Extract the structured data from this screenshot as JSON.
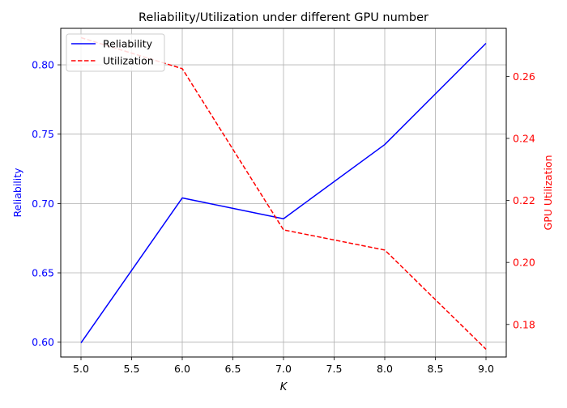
{
  "chart_data": {
    "type": "line",
    "title": "Reliability/Utilization under different GPU number",
    "xlabel": "K",
    "ylabel_left": "Reliability",
    "ylabel_right": "GPU Utilization",
    "x": [
      5,
      6,
      7,
      8,
      9
    ],
    "xlim": [
      4.8,
      9.2
    ],
    "x_ticks": [
      5.0,
      5.5,
      6.0,
      6.5,
      7.0,
      7.5,
      8.0,
      8.5,
      9.0
    ],
    "x_tick_labels": [
      "5.0",
      "5.5",
      "6.0",
      "6.5",
      "7.0",
      "7.5",
      "8.0",
      "8.5",
      "9.0"
    ],
    "ylim_left": [
      0.5893,
      0.8263
    ],
    "y_ticks_left": [
      0.6,
      0.65,
      0.7,
      0.75,
      0.8
    ],
    "y_tick_labels_left": [
      "0.60",
      "0.65",
      "0.70",
      "0.75",
      "0.80"
    ],
    "ylim_right": [
      0.1695,
      0.2755
    ],
    "y_ticks_right": [
      0.18,
      0.2,
      0.22,
      0.24,
      0.26
    ],
    "y_tick_labels_right": [
      "0.18",
      "0.20",
      "0.22",
      "0.24",
      "0.26"
    ],
    "grid": true,
    "legend_position": "top-left",
    "series": [
      {
        "name": "Reliability",
        "axis": "left",
        "color": "#0000ff",
        "style": "solid",
        "values": [
          0.5995,
          0.704,
          0.689,
          0.7425,
          0.8155
        ]
      },
      {
        "name": "Utilization",
        "axis": "right",
        "color": "#ff0000",
        "style": "dashed",
        "values": [
          0.2725,
          0.2625,
          0.2105,
          0.204,
          0.172
        ]
      }
    ]
  }
}
